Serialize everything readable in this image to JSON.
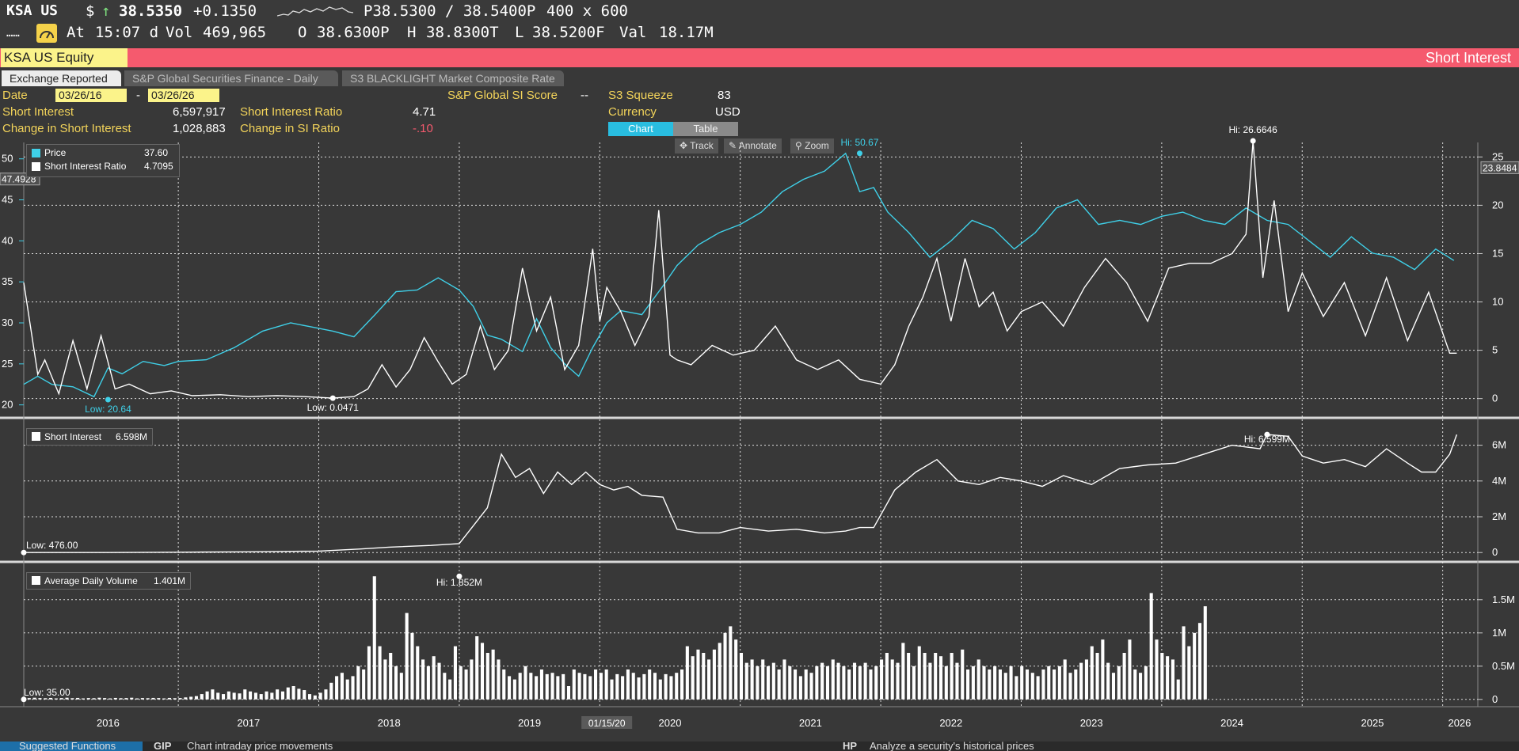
{
  "quote": {
    "ticker": "KSA US",
    "currency": "$",
    "arrow": "↑",
    "last": "38.5350",
    "change": "+0.1350",
    "bid_ask": "P38.5300 / 38.5400P",
    "size": "400 x 600",
    "dots": "……",
    "at_label": "At",
    "time": "15:07 d",
    "vol_label": "Vol",
    "vol": "469,965",
    "open_label": "O",
    "open": "38.6300P",
    "high_label": "H",
    "high": "38.8300T",
    "low_label": "L",
    "low": "38.5200F",
    "val_label": "Val",
    "val": "18.17M"
  },
  "header": {
    "security": "KSA US Equity",
    "function_title": "Short Interest"
  },
  "tabs": [
    {
      "label": "Exchange Reported",
      "active": true
    },
    {
      "label": "S&P Global Securities Finance - Daily",
      "active": false
    },
    {
      "label": "S3 BLACKLIGHT Market Composite Rate",
      "active": false
    }
  ],
  "info": {
    "date_label": "Date",
    "date_from": "03/26/16",
    "date_to": "03/26/26",
    "date_sep": "-",
    "si_label": "Short Interest",
    "si_value": "6,597,917",
    "sir_label": "Short Interest Ratio",
    "sir_value": "4.71",
    "chg_si_label": "Change in Short Interest",
    "chg_si_value": "1,028,883",
    "chg_sir_label": "Change in SI Ratio",
    "chg_sir_value": "-.10",
    "sp_score_label": "S&P Global SI Score",
    "sp_score_value": "--",
    "s3_label": "S3 Squeeze",
    "s3_value": "83",
    "currency_label": "Currency",
    "currency_value": "USD"
  },
  "view_buttons": {
    "chart": "Chart",
    "table": "Table"
  },
  "tools": {
    "track": "Track",
    "annotate": "Annotate",
    "zoom": "Zoom"
  },
  "colors": {
    "price": "#3fd0e8",
    "series": "#ffffff",
    "background": "#383838",
    "accent": "#f55a6e"
  },
  "chart_data": [
    {
      "type": "line",
      "panel": "top",
      "legend": [
        {
          "name": "Price",
          "value": "37.60",
          "color": "#3fd0e8"
        },
        {
          "name": "Short Interest Ratio",
          "value": "4.7095",
          "color": "#ffffff"
        }
      ],
      "left_axis": {
        "ticks": [
          20,
          25,
          30,
          35,
          40,
          45,
          50
        ],
        "range": [
          19,
          52
        ],
        "badge": "47.4928"
      },
      "right_axis": {
        "ticks": [
          0,
          5,
          10,
          15,
          20,
          25
        ],
        "range": [
          -1.5,
          26.5
        ],
        "badge": "23.8484"
      },
      "annotations": [
        {
          "text": "Low: 20.64",
          "x": 2016.5,
          "axis": "left",
          "y": 20.64
        },
        {
          "text": "Hi: 50.67",
          "x": 2021.85,
          "axis": "left",
          "y": 50.67
        },
        {
          "text": "Low: 0.0471",
          "x": 2018.1,
          "axis": "right",
          "y": 0.0471
        },
        {
          "text": "Hi: 26.6646",
          "x": 2024.65,
          "axis": "right",
          "y": 26.6646
        }
      ],
      "series": [
        {
          "name": "Price",
          "axis": "left",
          "color": "#3fd0e8",
          "x": [
            2015.9,
            2016.0,
            2016.1,
            2016.25,
            2016.4,
            2016.5,
            2016.6,
            2016.75,
            2016.9,
            2017.0,
            2017.2,
            2017.4,
            2017.6,
            2017.8,
            2017.95,
            2018.1,
            2018.25,
            2018.4,
            2018.55,
            2018.7,
            2018.85,
            2019.0,
            2019.1,
            2019.2,
            2019.3,
            2019.45,
            2019.55,
            2019.65,
            2019.75,
            2019.85,
            2019.95,
            2020.05,
            2020.15,
            2020.3,
            2020.45,
            2020.55,
            2020.7,
            2020.85,
            2021.0,
            2021.15,
            2021.3,
            2021.45,
            2021.6,
            2021.75,
            2021.85,
            2021.95,
            2022.05,
            2022.2,
            2022.35,
            2022.5,
            2022.65,
            2022.8,
            2022.95,
            2023.1,
            2023.25,
            2023.4,
            2023.55,
            2023.7,
            2023.85,
            2024.0,
            2024.15,
            2024.3,
            2024.45,
            2024.6,
            2024.75,
            2024.9,
            2025.05,
            2025.2,
            2025.35,
            2025.5,
            2025.65,
            2025.8,
            2025.95,
            2026.08
          ],
          "y": [
            22.5,
            23.5,
            22.5,
            22.2,
            21.0,
            24.5,
            23.8,
            25.3,
            24.8,
            25.3,
            25.5,
            27.0,
            29.0,
            30.0,
            29.5,
            29.0,
            28.3,
            31.0,
            33.8,
            34.0,
            35.5,
            34.0,
            32.0,
            28.5,
            28.0,
            26.5,
            30.5,
            27.0,
            25.0,
            23.5,
            27.0,
            30.0,
            31.5,
            31.0,
            34.5,
            37.0,
            39.5,
            41.0,
            42.0,
            43.5,
            46.0,
            47.5,
            48.5,
            50.67,
            46.0,
            46.5,
            43.5,
            41.0,
            38.0,
            40.0,
            42.5,
            41.5,
            39.0,
            41.0,
            44.0,
            45.0,
            42.0,
            42.5,
            42.0,
            43.0,
            43.5,
            42.5,
            42.0,
            44.0,
            42.5,
            42.0,
            40.0,
            38.0,
            40.5,
            38.5,
            38.0,
            36.5,
            39.0,
            37.6
          ]
        },
        {
          "name": "Short Interest Ratio",
          "axis": "right",
          "color": "#ffffff",
          "x": [
            2015.9,
            2016.0,
            2016.05,
            2016.15,
            2016.25,
            2016.35,
            2016.45,
            2016.55,
            2016.65,
            2016.8,
            2016.95,
            2017.1,
            2017.3,
            2017.5,
            2017.7,
            2017.9,
            2018.1,
            2018.25,
            2018.35,
            2018.45,
            2018.55,
            2018.65,
            2018.75,
            2018.85,
            2018.95,
            2019.05,
            2019.15,
            2019.25,
            2019.35,
            2019.45,
            2019.55,
            2019.65,
            2019.75,
            2019.85,
            2019.95,
            2020.0,
            2020.05,
            2020.15,
            2020.25,
            2020.35,
            2020.42,
            2020.5,
            2020.55,
            2020.65,
            2020.8,
            2020.95,
            2021.1,
            2021.25,
            2021.4,
            2021.55,
            2021.7,
            2021.85,
            2022.0,
            2022.1,
            2022.2,
            2022.3,
            2022.4,
            2022.5,
            2022.6,
            2022.7,
            2022.8,
            2022.9,
            2023.0,
            2023.15,
            2023.3,
            2023.45,
            2023.6,
            2023.75,
            2023.9,
            2024.05,
            2024.2,
            2024.35,
            2024.5,
            2024.6,
            2024.65,
            2024.72,
            2024.8,
            2024.9,
            2025.0,
            2025.15,
            2025.3,
            2025.45,
            2025.6,
            2025.75,
            2025.9,
            2026.05,
            2026.1
          ],
          "y": [
            12.0,
            2.5,
            4.0,
            0.5,
            6.0,
            1.0,
            6.5,
            1.0,
            1.5,
            0.5,
            0.8,
            0.3,
            0.4,
            0.2,
            0.3,
            0.2,
            0.0471,
            0.2,
            1.0,
            3.5,
            1.2,
            3.0,
            6.3,
            3.8,
            1.5,
            2.5,
            7.5,
            3.0,
            5.0,
            13.5,
            7.0,
            10.5,
            3.0,
            5.5,
            15.5,
            8.0,
            11.5,
            9.0,
            5.5,
            8.5,
            19.5,
            4.5,
            4.0,
            3.5,
            5.5,
            4.5,
            5.0,
            7.5,
            4.0,
            3.0,
            4.0,
            2.0,
            1.5,
            3.5,
            7.5,
            10.5,
            14.5,
            8.0,
            14.5,
            9.5,
            11.0,
            7.0,
            9.0,
            10.0,
            7.5,
            11.5,
            14.5,
            12.0,
            8.0,
            13.5,
            14.0,
            14.0,
            15.0,
            17.0,
            26.6646,
            12.5,
            20.5,
            9.0,
            13.0,
            8.5,
            12.0,
            6.5,
            12.5,
            6.0,
            11.0,
            4.7,
            4.7
          ]
        }
      ]
    },
    {
      "type": "line",
      "panel": "middle",
      "legend": [
        {
          "name": "Short Interest",
          "value": "6.598M",
          "color": "#ffffff"
        }
      ],
      "axis": {
        "ticks": [
          "0",
          "2M",
          "4M",
          "6M"
        ],
        "tick_values": [
          0,
          2000000,
          4000000,
          6000000
        ],
        "range": [
          -300000,
          7000000
        ]
      },
      "annotations": [
        {
          "text": "Low: 476.00",
          "x": 2015.9,
          "y": 476
        },
        {
          "text": "Hi: 6.599M",
          "x": 2024.75,
          "y": 6599000
        }
      ],
      "series": [
        {
          "name": "Short Interest",
          "x": [
            2015.9,
            2016.5,
            2017.0,
            2017.5,
            2018.0,
            2018.3,
            2018.5,
            2018.8,
            2019.0,
            2019.1,
            2019.2,
            2019.3,
            2019.4,
            2019.5,
            2019.6,
            2019.7,
            2019.8,
            2019.9,
            2020.0,
            2020.1,
            2020.2,
            2020.3,
            2020.45,
            2020.55,
            2020.7,
            2020.85,
            2021.0,
            2021.2,
            2021.4,
            2021.6,
            2021.75,
            2021.85,
            2021.95,
            2022.1,
            2022.25,
            2022.4,
            2022.55,
            2022.7,
            2022.85,
            2023.0,
            2023.15,
            2023.3,
            2023.5,
            2023.7,
            2023.9,
            2024.1,
            2024.3,
            2024.5,
            2024.7,
            2024.75,
            2024.9,
            2025.0,
            2025.15,
            2025.3,
            2025.45,
            2025.6,
            2025.75,
            2025.85,
            2025.95,
            2026.05,
            2026.1
          ],
          "y": [
            476,
            1000,
            20000,
            40000,
            80000,
            200000,
            300000,
            400000,
            500000,
            1500000,
            2500000,
            5500000,
            4200000,
            4700000,
            3300000,
            4500000,
            3800000,
            4500000,
            3800000,
            3500000,
            3700000,
            3200000,
            3100000,
            1300000,
            1100000,
            1100000,
            1400000,
            1200000,
            1300000,
            1100000,
            1200000,
            1400000,
            1400000,
            3500000,
            4500000,
            5200000,
            4000000,
            3800000,
            4200000,
            4000000,
            3700000,
            4300000,
            3800000,
            4700000,
            4900000,
            5000000,
            5500000,
            6000000,
            5800000,
            6599000,
            6500000,
            5400000,
            5000000,
            5200000,
            4800000,
            5800000,
            5000000,
            4500000,
            4500000,
            5500000,
            6598000
          ]
        }
      ]
    },
    {
      "type": "bar",
      "panel": "bottom",
      "legend": [
        {
          "name": "Average Daily Volume",
          "value": "1.401M",
          "color": "#ffffff"
        }
      ],
      "axis": {
        "ticks": [
          "0",
          "0.5M",
          "1M",
          "1.5M"
        ],
        "tick_values": [
          0,
          500000,
          1000000,
          1500000
        ],
        "range": [
          -50000,
          1950000
        ]
      },
      "annotations": [
        {
          "text": "Low: 35.00",
          "x": 2015.9,
          "y": 35
        },
        {
          "text": "Hi: 1.852M",
          "x": 2019.0,
          "y": 1852000
        }
      ],
      "series": [
        {
          "name": "Average Daily Volume",
          "x_start": 2015.9,
          "x_step": 0.0384,
          "values": [
            35,
            20000,
            25000,
            20000,
            18000,
            22000,
            15000,
            20000,
            25000,
            18000,
            22000,
            15000,
            20000,
            18000,
            25000,
            20000,
            15000,
            22000,
            18000,
            20000,
            25000,
            15000,
            20000,
            18000,
            22000,
            20000,
            15000,
            22000,
            18000,
            20000,
            30000,
            40000,
            50000,
            80000,
            120000,
            150000,
            100000,
            80000,
            120000,
            100000,
            90000,
            150000,
            120000,
            100000,
            80000,
            120000,
            100000,
            150000,
            120000,
            180000,
            200000,
            160000,
            140000,
            80000,
            60000,
            100000,
            150000,
            250000,
            350000,
            400000,
            300000,
            350000,
            500000,
            450000,
            800000,
            1852000,
            800000,
            600000,
            700000,
            500000,
            400000,
            1300000,
            1000000,
            800000,
            600000,
            500000,
            650000,
            550000,
            400000,
            300000,
            800000,
            500000,
            450000,
            600000,
            950000,
            850000,
            700000,
            750000,
            600000,
            450000,
            350000,
            300000,
            400000,
            500000,
            400000,
            350000,
            450000,
            380000,
            400000,
            350000,
            380000,
            200000,
            450000,
            400000,
            380000,
            350000,
            450000,
            400000,
            450000,
            300000,
            380000,
            350000,
            450000,
            400000,
            330000,
            380000,
            450000,
            400000,
            300000,
            380000,
            350000,
            400000,
            450000,
            800000,
            650000,
            750000,
            700000,
            600000,
            750000,
            850000,
            1000000,
            1100000,
            900000,
            700000,
            550000,
            600000,
            500000,
            600000,
            500000,
            550000,
            450000,
            600000,
            500000,
            450000,
            350000,
            450000,
            400000,
            500000,
            550000,
            500000,
            600000,
            550000,
            500000,
            450000,
            550000,
            500000,
            550000,
            450000,
            500000,
            600000,
            700000,
            600000,
            550000,
            850000,
            700000,
            500000,
            800000,
            700000,
            550000,
            700000,
            650000,
            500000,
            700000,
            550000,
            750000,
            450000,
            500000,
            600000,
            500000,
            450000,
            500000,
            450000,
            400000,
            500000,
            350000,
            500000,
            450000,
            400000,
            350000,
            450000,
            500000,
            450000,
            500000,
            600000,
            400000,
            450000,
            550000,
            600000,
            800000,
            700000,
            900000,
            550000,
            400000,
            500000,
            700000,
            900000,
            450000,
            400000,
            500000,
            1600000,
            900000,
            700000,
            650000,
            600000,
            300000,
            1100000,
            800000,
            1000000,
            1150000,
            1401000
          ]
        }
      ]
    }
  ],
  "x_axis": {
    "labels": [
      "2016",
      "2017",
      "2018",
      "2019",
      "2020",
      "2021",
      "2022",
      "2023",
      "2024",
      "2025",
      "2026"
    ],
    "cursor_label": "01/15/20"
  },
  "bottom_bar": {
    "suggested": "Suggested Functions",
    "fn1_code": "GIP",
    "fn1_desc": "Chart intraday price movements",
    "fn2_code": "HP",
    "fn2_desc": "Analyze a security's historical prices"
  }
}
